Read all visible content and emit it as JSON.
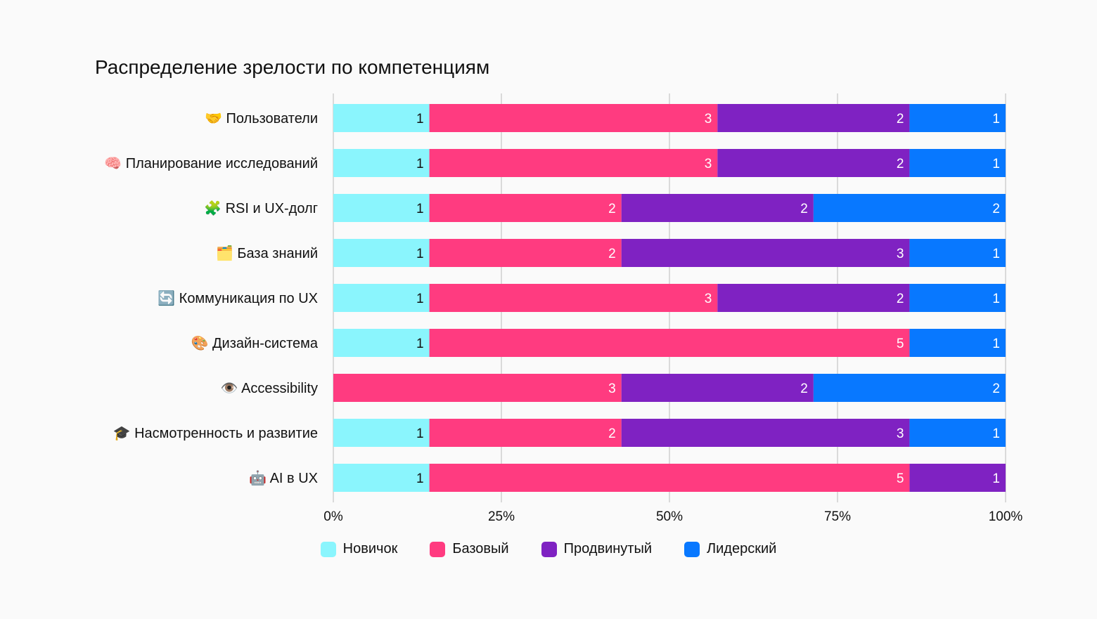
{
  "chart_data": {
    "type": "bar",
    "orientation": "horizontal",
    "stacked": true,
    "normalized": true,
    "title": "Распределение зрелости по компетенциям",
    "categories": [
      "🤝 Пользователи",
      "🧠 Планирование исследований",
      "🧩 RSI и UX-долг",
      "🗂️ База знаний",
      "🔄 Коммуникация по UX",
      "🎨 Дизайн-система",
      "👁️ Accessibility",
      "🎓 Насмотренность и развитие",
      "🤖 AI в UX"
    ],
    "series": [
      {
        "name": "Новичок",
        "color": "#8af5fd",
        "label_color": "#111111",
        "values": [
          1,
          1,
          1,
          1,
          1,
          1,
          0,
          1,
          1
        ]
      },
      {
        "name": "Базовый",
        "color": "#ff3b80",
        "label_color": "#ffffff",
        "values": [
          3,
          3,
          2,
          2,
          3,
          5,
          3,
          2,
          5
        ]
      },
      {
        "name": "Продвинутый",
        "color": "#7f22c2",
        "label_color": "#ffffff",
        "values": [
          2,
          2,
          2,
          3,
          2,
          0,
          2,
          3,
          1
        ]
      },
      {
        "name": "Лидерский",
        "color": "#0878ff",
        "label_color": "#ffffff",
        "values": [
          1,
          1,
          2,
          1,
          1,
          1,
          2,
          1,
          0
        ]
      }
    ],
    "xlim": [
      0,
      100
    ],
    "xticks": [
      "0%",
      "25%",
      "50%",
      "75%",
      "100%"
    ],
    "grid": true,
    "legend_position": "bottom"
  }
}
